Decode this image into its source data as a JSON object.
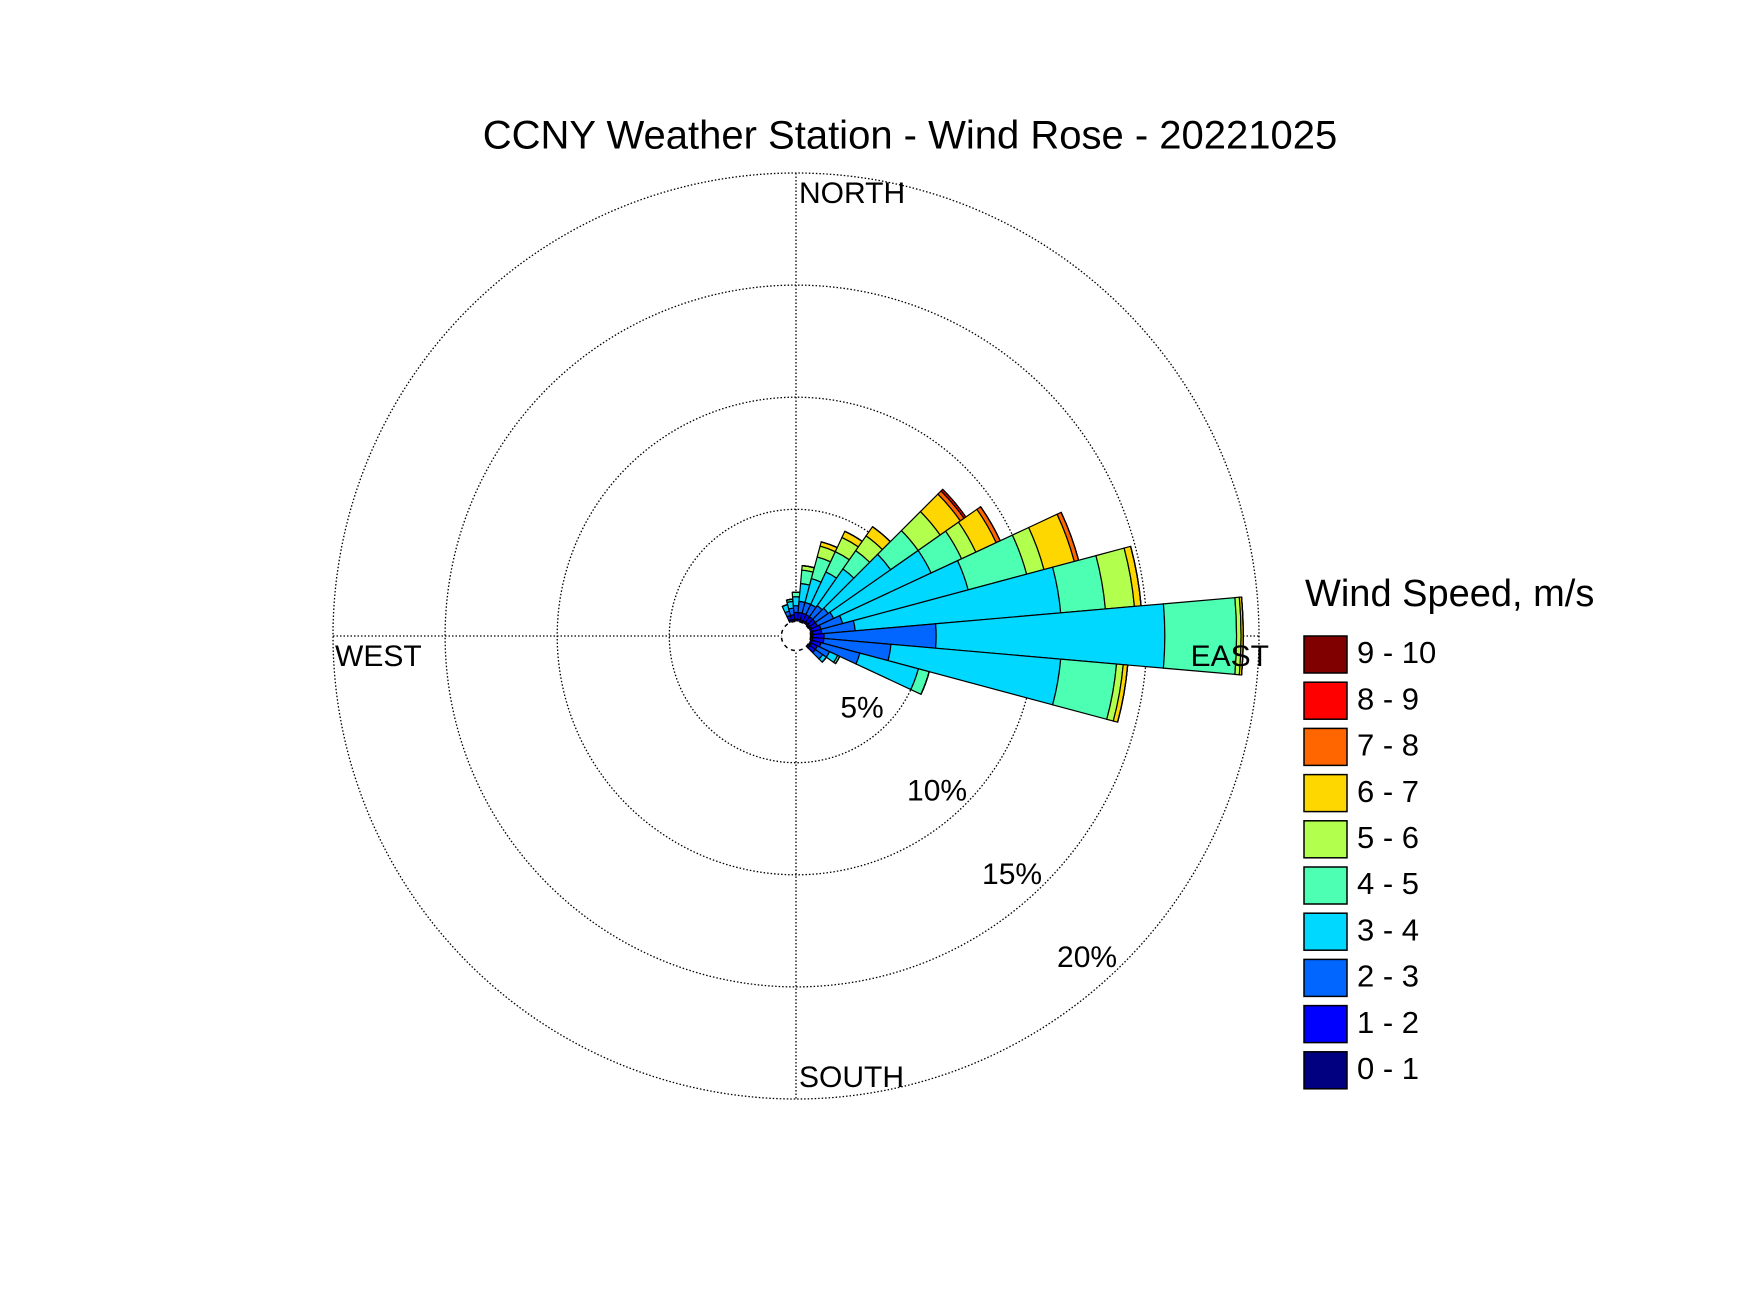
{
  "chart_data": {
    "type": "wind-rose",
    "title": "CCNY Weather Station - Wind Rose - 20221025",
    "legend_title": "Wind Speed, m/s",
    "direction_labels": [
      "NORTH",
      "EAST",
      "SOUTH",
      "WEST"
    ],
    "directions": [
      340,
      350,
      0,
      10,
      20,
      30,
      40,
      50,
      60,
      70,
      80,
      90,
      100,
      110,
      120,
      130
    ],
    "sector_width": 10,
    "rlim": [
      0,
      20
    ],
    "rticks": [
      {
        "value": 5,
        "label": "5%"
      },
      {
        "value": 10,
        "label": "10%"
      },
      {
        "value": 15,
        "label": "15%"
      },
      {
        "value": 20,
        "label": "20%"
      }
    ],
    "series": [
      {
        "name": "0 - 1",
        "color": "#000080",
        "values": [
          0.1,
          0.1,
          0.1,
          0.1,
          0.1,
          0.1,
          0.1,
          0.1,
          0.1,
          0.1,
          0.1,
          0.1,
          0.1,
          0.1,
          0.1,
          0.1
        ]
      },
      {
        "name": "1 - 2",
        "color": "#0000ff",
        "values": [
          0.2,
          0.2,
          0.3,
          0.3,
          0.3,
          0.3,
          0.3,
          0.3,
          0.3,
          0.4,
          0.4,
          0.5,
          0.5,
          0.4,
          0.3,
          0.3
        ]
      },
      {
        "name": "2 - 3",
        "color": "#0066ff",
        "values": [
          0.2,
          0.3,
          0.3,
          0.5,
          0.5,
          0.5,
          0.6,
          0.7,
          0.8,
          1.0,
          1.5,
          5.0,
          3.0,
          1.8,
          0.6,
          0.4
        ]
      },
      {
        "name": "3 - 4",
        "color": "#00d8ff",
        "values": [
          0.3,
          0.3,
          0.4,
          0.8,
          1.1,
          1.6,
          2.0,
          3.4,
          4.8,
          5.8,
          9.2,
          10.2,
          7.6,
          2.7,
          0.4,
          0.2
        ]
      },
      {
        "name": "4 - 5",
        "color": "#4dffb3",
        "values": [
          0,
          0.1,
          0.2,
          0.6,
          1.0,
          1.0,
          1.0,
          1.5,
          1.5,
          2.7,
          2.0,
          3.2,
          2.5,
          0.5,
          0.1,
          0
        ]
      },
      {
        "name": "5 - 6",
        "color": "#b3ff4d",
        "values": [
          0,
          0,
          0,
          0.2,
          0.5,
          0.7,
          0.8,
          1.2,
          0.7,
          0.8,
          1.3,
          0.2,
          0.3,
          0,
          0,
          0
        ]
      },
      {
        "name": "6 - 7",
        "color": "#ffd700",
        "values": [
          0,
          0,
          0,
          0,
          0.2,
          0.3,
          0.5,
          1.1,
          1.0,
          1.4,
          0.3,
          0.1,
          0.2,
          0,
          0,
          0
        ]
      },
      {
        "name": "7 - 8",
        "color": "#ff6600",
        "values": [
          0,
          0,
          0,
          0,
          0,
          0,
          0,
          0.2,
          0.2,
          0.2,
          0,
          0,
          0,
          0,
          0,
          0
        ]
      },
      {
        "name": "8 - 9",
        "color": "#ff0000",
        "values": [
          0,
          0,
          0,
          0,
          0,
          0,
          0,
          0.1,
          0,
          0,
          0,
          0,
          0,
          0,
          0,
          0
        ]
      },
      {
        "name": "9 - 10",
        "color": "#800000",
        "values": [
          0,
          0,
          0,
          0,
          0,
          0,
          0,
          0,
          0,
          0,
          0,
          0,
          0,
          0,
          0,
          0
        ]
      }
    ]
  }
}
